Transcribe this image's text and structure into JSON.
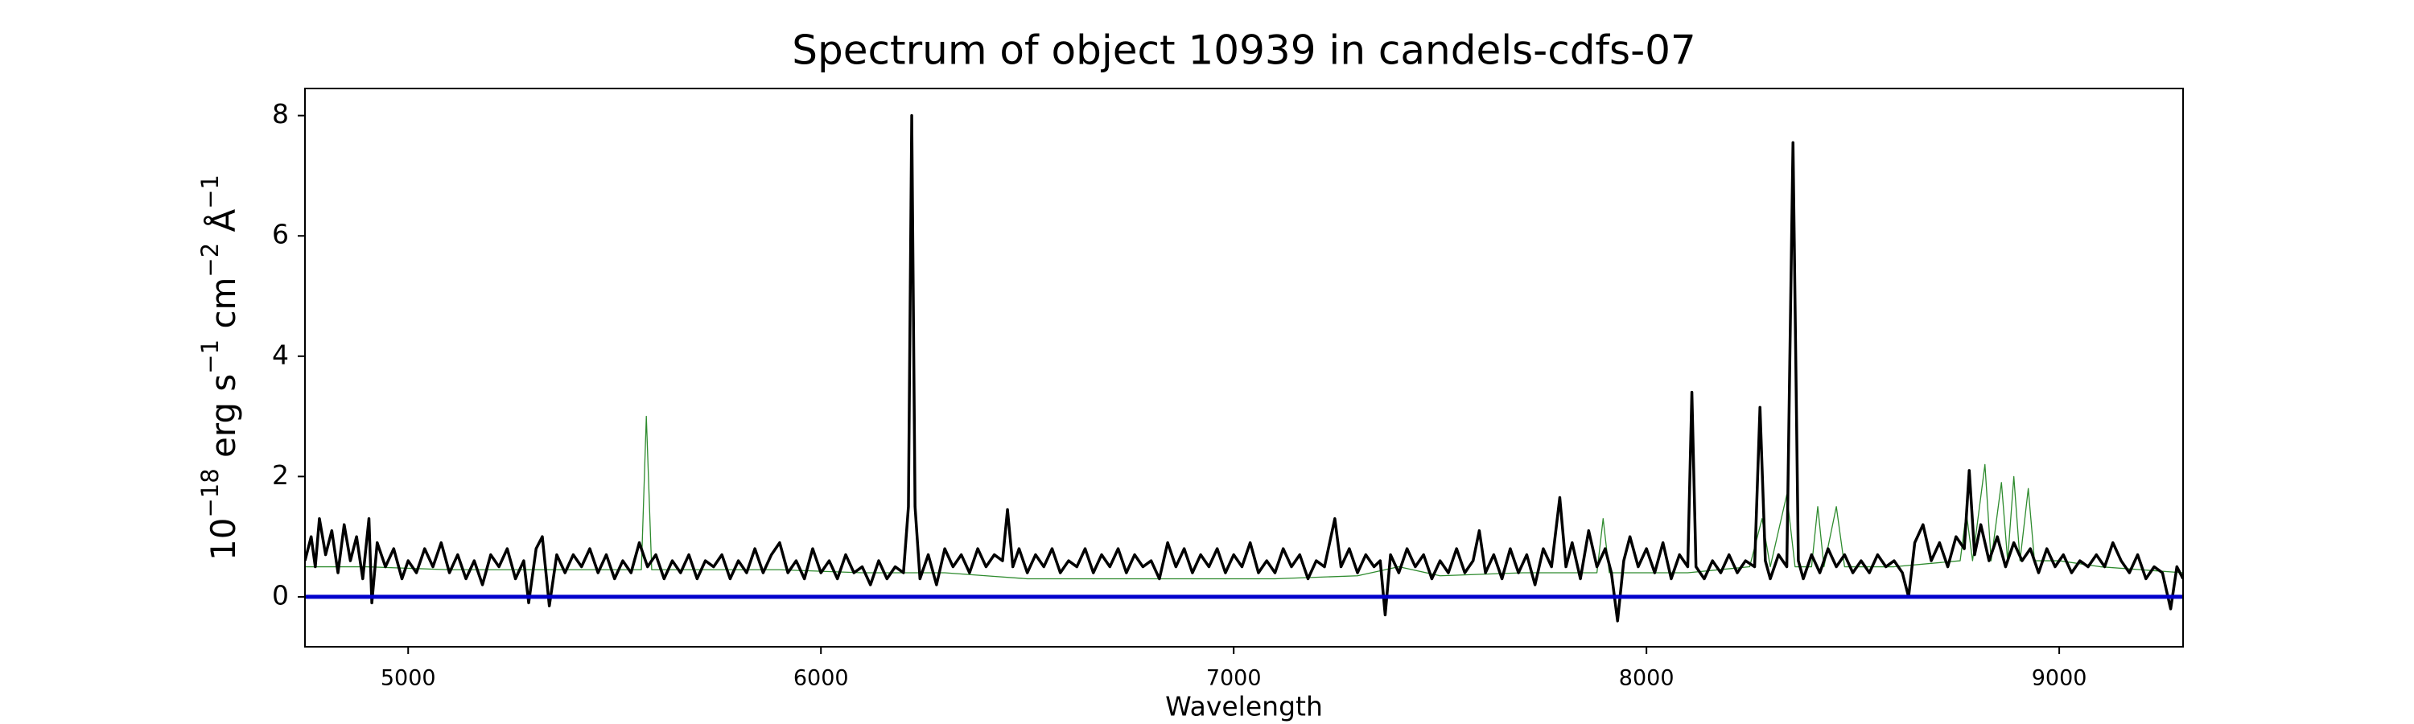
{
  "chart_data": {
    "type": "line",
    "title": "Spectrum of object 10939 in candels-cdfs-07",
    "xlabel": "Wavelength",
    "ylabel": [
      {
        "text": "10"
      },
      {
        "text": "−18",
        "sup": true
      },
      {
        "text": " erg s"
      },
      {
        "text": "−1",
        "sup": true
      },
      {
        "text": " cm"
      },
      {
        "text": "−2",
        "sup": true
      },
      {
        "text": " Å"
      },
      {
        "text": "−1",
        "sup": true
      }
    ],
    "xlim": [
      4750,
      9300
    ],
    "ylim": [
      -0.83,
      8.45
    ],
    "xticks": [
      5000,
      6000,
      7000,
      8000,
      9000
    ],
    "yticks": [
      0,
      2,
      4,
      6,
      8
    ],
    "series": [
      {
        "color": "#2e8b2e",
        "width": 1.3,
        "x": [
          4750,
          4900,
          5100,
          5300,
          5500,
          5565,
          5577,
          5590,
          5700,
          5900,
          6100,
          6300,
          6400,
          6500,
          6700,
          6900,
          7100,
          7300,
          7400,
          7500,
          7700,
          7880,
          7895,
          7910,
          8100,
          8250,
          8280,
          8300,
          8340,
          8360,
          8400,
          8415,
          8430,
          8460,
          8480,
          8600,
          8760,
          8775,
          8790,
          8820,
          8835,
          8860,
          8875,
          8890,
          8905,
          8925,
          8940,
          9000,
          9100,
          9300
        ],
        "values": [
          0.5,
          0.5,
          0.45,
          0.45,
          0.45,
          0.45,
          3.0,
          0.45,
          0.45,
          0.45,
          0.4,
          0.4,
          0.35,
          0.3,
          0.3,
          0.3,
          0.3,
          0.35,
          0.5,
          0.35,
          0.4,
          0.4,
          1.3,
          0.4,
          0.4,
          0.5,
          1.3,
          0.5,
          1.7,
          0.5,
          0.5,
          1.5,
          0.5,
          1.5,
          0.5,
          0.5,
          0.6,
          1.4,
          0.6,
          2.2,
          0.6,
          1.9,
          0.6,
          2.0,
          0.6,
          1.8,
          0.6,
          0.6,
          0.5,
          0.4
        ]
      },
      {
        "color": "#000000",
        "width": 3.5,
        "x": [
          4750,
          4765,
          4775,
          4785,
          4800,
          4815,
          4830,
          4845,
          4860,
          4875,
          4890,
          4905,
          4912,
          4925,
          4945,
          4965,
          4985,
          5000,
          5020,
          5040,
          5060,
          5080,
          5100,
          5120,
          5140,
          5160,
          5180,
          5200,
          5220,
          5240,
          5260,
          5280,
          5292,
          5310,
          5325,
          5342,
          5360,
          5380,
          5400,
          5420,
          5440,
          5460,
          5480,
          5500,
          5520,
          5540,
          5560,
          5580,
          5600,
          5620,
          5640,
          5660,
          5680,
          5700,
          5720,
          5740,
          5760,
          5780,
          5800,
          5820,
          5840,
          5860,
          5880,
          5900,
          5920,
          5940,
          5960,
          5980,
          6000,
          6020,
          6040,
          6060,
          6080,
          6100,
          6120,
          6140,
          6160,
          6180,
          6200,
          6212,
          6220,
          6228,
          6240,
          6260,
          6280,
          6300,
          6320,
          6340,
          6360,
          6380,
          6400,
          6420,
          6440,
          6452,
          6465,
          6480,
          6500,
          6520,
          6540,
          6560,
          6580,
          6600,
          6620,
          6640,
          6660,
          6680,
          6700,
          6720,
          6740,
          6760,
          6780,
          6800,
          6820,
          6840,
          6860,
          6880,
          6900,
          6920,
          6940,
          6960,
          6980,
          7000,
          7020,
          7040,
          7060,
          7080,
          7100,
          7120,
          7140,
          7160,
          7180,
          7200,
          7220,
          7245,
          7260,
          7280,
          7300,
          7320,
          7340,
          7355,
          7367,
          7380,
          7400,
          7420,
          7440,
          7460,
          7480,
          7500,
          7520,
          7540,
          7560,
          7580,
          7595,
          7610,
          7630,
          7650,
          7670,
          7690,
          7710,
          7730,
          7750,
          7770,
          7790,
          7805,
          7820,
          7840,
          7860,
          7880,
          7900,
          7915,
          7930,
          7945,
          7960,
          7980,
          8000,
          8020,
          8040,
          8060,
          8080,
          8100,
          8110,
          8120,
          8140,
          8160,
          8180,
          8200,
          8220,
          8240,
          8262,
          8275,
          8288,
          8300,
          8320,
          8340,
          8355,
          8368,
          8380,
          8400,
          8420,
          8440,
          8460,
          8480,
          8500,
          8520,
          8540,
          8560,
          8580,
          8600,
          8620,
          8635,
          8650,
          8670,
          8690,
          8710,
          8730,
          8750,
          8770,
          8782,
          8795,
          8810,
          8830,
          8850,
          8870,
          8890,
          8910,
          8930,
          8950,
          8970,
          8990,
          9010,
          9030,
          9050,
          9070,
          9090,
          9110,
          9130,
          9150,
          9170,
          9190,
          9210,
          9230,
          9250,
          9270,
          9285,
          9300
        ],
        "values": [
          0.6,
          1.0,
          0.5,
          1.3,
          0.7,
          1.1,
          0.4,
          1.2,
          0.6,
          1.0,
          0.3,
          1.3,
          -0.1,
          0.9,
          0.5,
          0.8,
          0.3,
          0.6,
          0.4,
          0.8,
          0.5,
          0.9,
          0.4,
          0.7,
          0.3,
          0.6,
          0.2,
          0.7,
          0.5,
          0.8,
          0.3,
          0.6,
          -0.1,
          0.8,
          1.0,
          -0.15,
          0.7,
          0.4,
          0.7,
          0.5,
          0.8,
          0.4,
          0.7,
          0.3,
          0.6,
          0.4,
          0.9,
          0.5,
          0.7,
          0.3,
          0.6,
          0.4,
          0.7,
          0.3,
          0.6,
          0.5,
          0.7,
          0.3,
          0.6,
          0.4,
          0.8,
          0.4,
          0.7,
          0.9,
          0.4,
          0.6,
          0.3,
          0.8,
          0.4,
          0.6,
          0.3,
          0.7,
          0.4,
          0.5,
          0.2,
          0.6,
          0.3,
          0.5,
          0.4,
          1.5,
          8.0,
          1.5,
          0.3,
          0.7,
          0.2,
          0.8,
          0.5,
          0.7,
          0.4,
          0.8,
          0.5,
          0.7,
          0.6,
          1.45,
          0.5,
          0.8,
          0.4,
          0.7,
          0.5,
          0.8,
          0.4,
          0.6,
          0.5,
          0.8,
          0.4,
          0.7,
          0.5,
          0.8,
          0.4,
          0.7,
          0.5,
          0.6,
          0.3,
          0.9,
          0.5,
          0.8,
          0.4,
          0.7,
          0.5,
          0.8,
          0.4,
          0.7,
          0.5,
          0.9,
          0.4,
          0.6,
          0.4,
          0.8,
          0.5,
          0.7,
          0.3,
          0.6,
          0.5,
          1.3,
          0.5,
          0.8,
          0.4,
          0.7,
          0.5,
          0.6,
          -0.3,
          0.7,
          0.4,
          0.8,
          0.5,
          0.7,
          0.3,
          0.6,
          0.4,
          0.8,
          0.4,
          0.6,
          1.1,
          0.4,
          0.7,
          0.3,
          0.8,
          0.4,
          0.7,
          0.2,
          0.8,
          0.5,
          1.65,
          0.5,
          0.9,
          0.3,
          1.1,
          0.5,
          0.8,
          0.4,
          -0.4,
          0.6,
          1.0,
          0.5,
          0.8,
          0.4,
          0.9,
          0.3,
          0.7,
          0.5,
          3.4,
          0.5,
          0.3,
          0.6,
          0.4,
          0.7,
          0.4,
          0.6,
          0.5,
          3.15,
          0.6,
          0.3,
          0.7,
          0.5,
          7.55,
          0.6,
          0.3,
          0.7,
          0.4,
          0.8,
          0.5,
          0.7,
          0.4,
          0.6,
          0.4,
          0.7,
          0.5,
          0.6,
          0.4,
          0.0,
          0.9,
          1.2,
          0.6,
          0.9,
          0.5,
          1.0,
          0.8,
          2.1,
          0.7,
          1.2,
          0.6,
          1.0,
          0.5,
          0.9,
          0.6,
          0.8,
          0.4,
          0.8,
          0.5,
          0.7,
          0.4,
          0.6,
          0.5,
          0.7,
          0.5,
          0.9,
          0.6,
          0.4,
          0.7,
          0.3,
          0.5,
          0.4,
          -0.2,
          0.5,
          0.3
        ]
      },
      {
        "color": "#0000cc",
        "width": 5,
        "x": [
          4750,
          9300
        ],
        "values": [
          0,
          0
        ]
      }
    ]
  }
}
